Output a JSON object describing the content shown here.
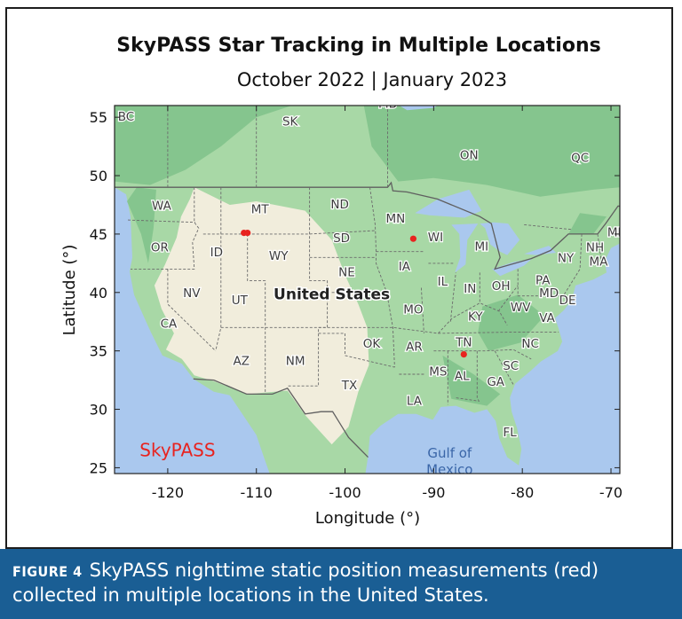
{
  "chart_data": {
    "type": "scatter",
    "title": "SkyPASS Star Tracking in Multiple Locations",
    "subtitle": "October 2022 | January 2023",
    "xlabel": "Longitude (°)",
    "ylabel": "Latitude (°)",
    "xlim": [
      -126,
      -69
    ],
    "ylim": [
      24.5,
      56
    ],
    "xticks": [
      -120,
      -110,
      -100,
      -90,
      -80,
      -70
    ],
    "yticks": [
      25,
      30,
      35,
      40,
      45,
      50,
      55
    ],
    "grid": false,
    "series": [
      {
        "color": "#e8231f",
        "points": [
          {
            "x": -111.4,
            "y": 45.1
          },
          {
            "x": -111.0,
            "y": 45.1
          },
          {
            "x": -92.3,
            "y": 44.6
          },
          {
            "x": -86.6,
            "y": 34.7
          }
        ]
      }
    ],
    "background_map_labels": [
      {
        "text": "BC",
        "x": -124.7,
        "y": 55.0
      },
      {
        "text": "SK",
        "x": -106.2,
        "y": 54.6
      },
      {
        "text": "MB",
        "x": -95.2,
        "y": 56.1
      },
      {
        "text": "ON",
        "x": -86.0,
        "y": 51.7
      },
      {
        "text": "QC",
        "x": -73.5,
        "y": 51.5
      },
      {
        "text": "WA",
        "x": -120.7,
        "y": 47.4
      },
      {
        "text": "MT",
        "x": -109.6,
        "y": 47.1
      },
      {
        "text": "ND",
        "x": -100.6,
        "y": 47.5
      },
      {
        "text": "MN",
        "x": -94.3,
        "y": 46.3
      },
      {
        "text": "ME",
        "x": -69.4,
        "y": 45.1
      },
      {
        "text": "OR",
        "x": -120.9,
        "y": 43.8
      },
      {
        "text": "ID",
        "x": -114.5,
        "y": 43.4
      },
      {
        "text": "SD",
        "x": -100.4,
        "y": 44.6
      },
      {
        "text": "WI",
        "x": -89.8,
        "y": 44.7
      },
      {
        "text": "MI",
        "x": -84.6,
        "y": 43.9
      },
      {
        "text": "NH",
        "x": -71.8,
        "y": 43.8
      },
      {
        "text": "WY",
        "x": -107.5,
        "y": 43.1
      },
      {
        "text": "NY",
        "x": -75.1,
        "y": 42.9
      },
      {
        "text": "MA",
        "x": -71.4,
        "y": 42.6
      },
      {
        "text": "NE",
        "x": -99.8,
        "y": 41.7
      },
      {
        "text": "IA",
        "x": -93.3,
        "y": 42.2
      },
      {
        "text": "PA",
        "x": -77.7,
        "y": 41.0
      },
      {
        "text": "IL",
        "x": -89.0,
        "y": 40.9
      },
      {
        "text": "IN",
        "x": -85.9,
        "y": 40.3
      },
      {
        "text": "OH",
        "x": -82.4,
        "y": 40.5
      },
      {
        "text": "NV",
        "x": -117.3,
        "y": 39.9
      },
      {
        "text": "UT",
        "x": -111.9,
        "y": 39.3
      },
      {
        "text": "MD",
        "x": -77.0,
        "y": 39.9
      },
      {
        "text": "DE",
        "x": -74.9,
        "y": 39.3
      },
      {
        "text": "MO",
        "x": -92.3,
        "y": 38.5
      },
      {
        "text": "WV",
        "x": -80.2,
        "y": 38.7
      },
      {
        "text": "KY",
        "x": -85.3,
        "y": 37.9
      },
      {
        "text": "VA",
        "x": -77.2,
        "y": 37.8
      },
      {
        "text": "CA",
        "x": -119.9,
        "y": 37.3
      },
      {
        "text": "OK",
        "x": -97.0,
        "y": 35.6
      },
      {
        "text": "AR",
        "x": -92.2,
        "y": 35.3
      },
      {
        "text": "TN",
        "x": -86.6,
        "y": 35.7
      },
      {
        "text": "NC",
        "x": -79.1,
        "y": 35.6
      },
      {
        "text": "AZ",
        "x": -111.7,
        "y": 34.1
      },
      {
        "text": "NM",
        "x": -105.6,
        "y": 34.1
      },
      {
        "text": "SC",
        "x": -81.3,
        "y": 33.7
      },
      {
        "text": "MS",
        "x": -89.5,
        "y": 33.2
      },
      {
        "text": "AL",
        "x": -86.8,
        "y": 32.8
      },
      {
        "text": "GA",
        "x": -83.0,
        "y": 32.3
      },
      {
        "text": "TX",
        "x": -99.5,
        "y": 32.0
      },
      {
        "text": "LA",
        "x": -92.2,
        "y": 30.7
      },
      {
        "text": "FL",
        "x": -81.4,
        "y": 28.0
      }
    ],
    "map_feature_labels": [
      {
        "text": "United States",
        "x": -101.5,
        "y": 39.8,
        "bold": true
      },
      {
        "text": "Gulf of",
        "x": -88.2,
        "y": 26.2,
        "color": "#3a66a8"
      },
      {
        "text": "Mexico",
        "x": -88.2,
        "y": 24.8,
        "color": "#3a66a8"
      }
    ],
    "annotation": {
      "text": "SkyPASS",
      "x": -118.9,
      "y": 26.4,
      "color": "#e8231f"
    }
  },
  "caption": {
    "label": "FIGURE 4",
    "text": "SkyPASS nighttime static position measurements (red) collected in multiple locations in the United States."
  },
  "colors": {
    "ocean": "#aac8ee",
    "land_green": "#a8d8a6",
    "land_dark_green": "#7fc28a",
    "land_arid": "#f1eddc",
    "border": "#666666",
    "point": "#e8231f",
    "caption_bg": "#1a5e94"
  }
}
